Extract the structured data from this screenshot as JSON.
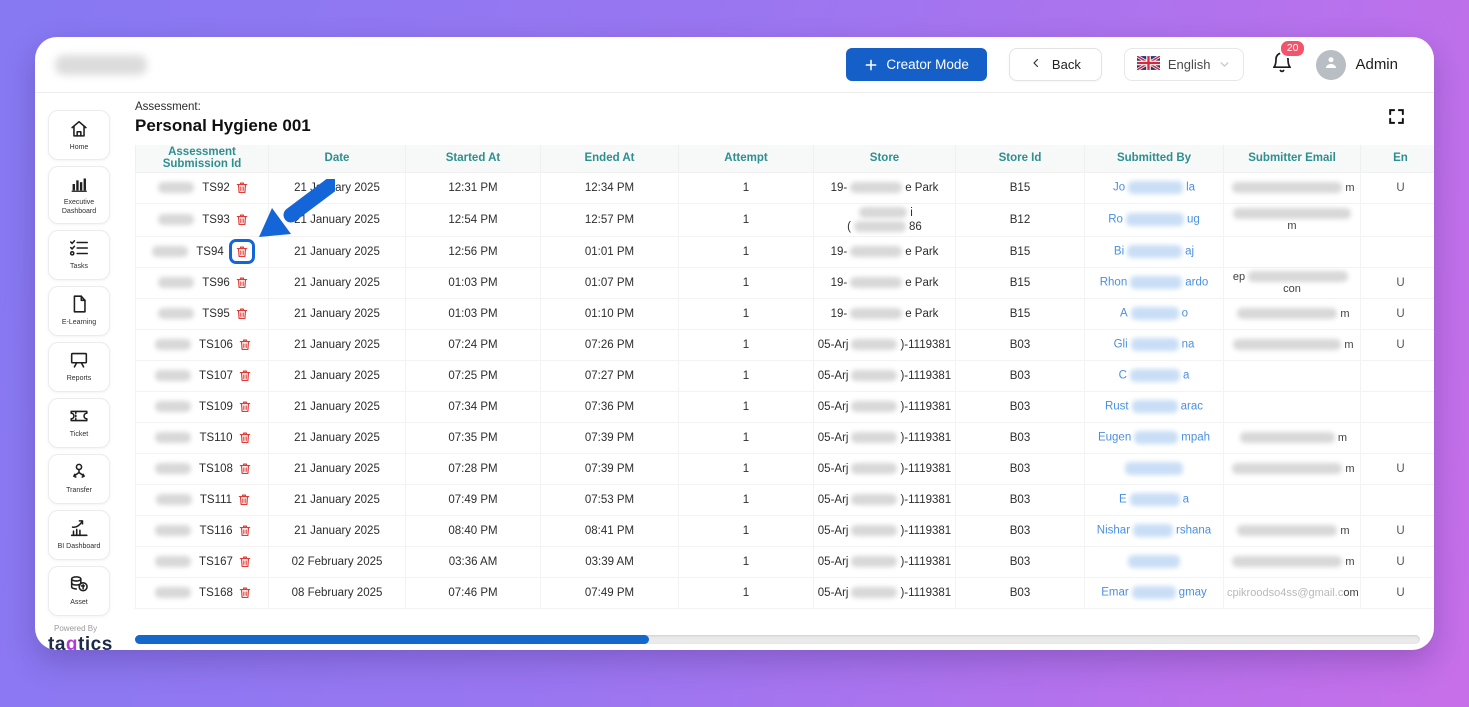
{
  "topbar": {
    "creator_mode_label": "Creator Mode",
    "back_label": "Back",
    "language_selected": "English",
    "notification_count": "20",
    "user_name": "Admin"
  },
  "sidebar": {
    "items": [
      {
        "label": "Home",
        "icon": "home-icon"
      },
      {
        "label": "Executive Dashboard",
        "icon": "executive-dashboard-icon"
      },
      {
        "label": "Tasks",
        "icon": "tasks-icon"
      },
      {
        "label": "E-Learning",
        "icon": "e-learning-icon"
      },
      {
        "label": "Reports",
        "icon": "reports-icon"
      },
      {
        "label": "Ticket",
        "icon": "ticket-icon"
      },
      {
        "label": "Transfer",
        "icon": "transfer-icon"
      },
      {
        "label": "BI Dashboard",
        "icon": "bi-dashboard-icon"
      },
      {
        "label": "Asset",
        "icon": "asset-icon"
      }
    ],
    "powered_by": "Powered By",
    "brand_prefix": "ta",
    "brand_q": "q",
    "brand_suffix": "tics"
  },
  "main": {
    "assessment_label": "Assessment:",
    "assessment_name": "Personal Hygiene 001"
  },
  "table": {
    "headers": [
      "Assessment Submission Id",
      "Date",
      "Started At",
      "Ended At",
      "Attempt",
      "Store",
      "Store Id",
      "Submitted By",
      "Submitter Email",
      "En"
    ],
    "rows": [
      {
        "id": "TS92",
        "date": "21 January 2025",
        "started": "12:31 PM",
        "ended": "12:34 PM",
        "attempt": "1",
        "store": [
          [
            {
              "t": "19-"
            },
            {
              "b": 52
            },
            {
              "t": "e Park"
            }
          ]
        ],
        "store_id": "B15",
        "submitted_by": [
          {
            "t": "Jo"
          },
          {
            "b": 55,
            "c": "blue"
          },
          {
            "t": "la"
          }
        ],
        "email": [
          {
            "b": 110
          },
          {
            "t": "m"
          }
        ],
        "emp": "U",
        "highlight": false
      },
      {
        "id": "TS93",
        "date": "21 January 2025",
        "started": "12:54 PM",
        "ended": "12:57 PM",
        "attempt": "1",
        "store": [
          [
            {
              "b": 48
            },
            {
              "t": "i"
            }
          ],
          [
            {
              "t": "("
            },
            {
              "b": 52
            },
            {
              "t": "86"
            }
          ]
        ],
        "store_id": "B12",
        "submitted_by": [
          {
            "t": "Ro"
          },
          {
            "b": 58,
            "c": "blue"
          },
          {
            "t": "ug"
          }
        ],
        "email": [
          {
            "b": 118
          },
          {
            "t": "m"
          }
        ],
        "emp": "",
        "highlight": false
      },
      {
        "id": "TS94",
        "date": "21 January 2025",
        "started": "12:56 PM",
        "ended": "01:01 PM",
        "attempt": "1",
        "store": [
          [
            {
              "t": "19-"
            },
            {
              "b": 52
            },
            {
              "t": "e Park"
            }
          ]
        ],
        "store_id": "B15",
        "submitted_by": [
          {
            "t": "Bi"
          },
          {
            "b": 55,
            "c": "blue"
          },
          {
            "t": "aj"
          }
        ],
        "email": [],
        "emp": "",
        "highlight": true
      },
      {
        "id": "TS96",
        "date": "21 January 2025",
        "started": "01:03 PM",
        "ended": "01:07 PM",
        "attempt": "1",
        "store": [
          [
            {
              "t": "19-"
            },
            {
              "b": 52
            },
            {
              "t": "e Park"
            }
          ]
        ],
        "store_id": "B15",
        "submitted_by": [
          {
            "t": "Rhon"
          },
          {
            "b": 52,
            "c": "blue"
          },
          {
            "t": "ardo"
          }
        ],
        "email": [
          {
            "t": "ep"
          },
          {
            "b": 100
          },
          {
            "t": "con"
          }
        ],
        "emp": "U",
        "highlight": false
      },
      {
        "id": "TS95",
        "date": "21 January 2025",
        "started": "01:03 PM",
        "ended": "01:10 PM",
        "attempt": "1",
        "store": [
          [
            {
              "t": "19-"
            },
            {
              "b": 52
            },
            {
              "t": "e Park"
            }
          ]
        ],
        "store_id": "B15",
        "submitted_by": [
          {
            "t": "A"
          },
          {
            "b": 48,
            "c": "blue"
          },
          {
            "t": "o"
          }
        ],
        "email": [
          {
            "b": 100
          },
          {
            "t": "m"
          }
        ],
        "emp": "U",
        "highlight": false
      },
      {
        "id": "TS106",
        "date": "21 January 2025",
        "started": "07:24 PM",
        "ended": "07:26 PM",
        "attempt": "1",
        "store": [
          [
            {
              "t": "05-Arj"
            },
            {
              "b": 46
            },
            {
              "t": ")-1119381"
            }
          ]
        ],
        "store_id": "B03",
        "submitted_by": [
          {
            "t": "Gli"
          },
          {
            "b": 48,
            "c": "blue"
          },
          {
            "t": "na"
          }
        ],
        "email": [
          {
            "b": 108
          },
          {
            "t": "m"
          }
        ],
        "emp": "U",
        "highlight": false
      },
      {
        "id": "TS107",
        "date": "21 January 2025",
        "started": "07:25 PM",
        "ended": "07:27 PM",
        "attempt": "1",
        "store": [
          [
            {
              "t": "05-Arj"
            },
            {
              "b": 46
            },
            {
              "t": ")-1119381"
            }
          ]
        ],
        "store_id": "B03",
        "submitted_by": [
          {
            "t": "C"
          },
          {
            "b": 50,
            "c": "blue"
          },
          {
            "t": "a"
          }
        ],
        "email": [],
        "emp": "",
        "highlight": false
      },
      {
        "id": "TS109",
        "date": "21 January 2025",
        "started": "07:34 PM",
        "ended": "07:36 PM",
        "attempt": "1",
        "store": [
          [
            {
              "t": "05-Arj"
            },
            {
              "b": 46
            },
            {
              "t": ")-1119381"
            }
          ]
        ],
        "store_id": "B03",
        "submitted_by": [
          {
            "t": "Rust"
          },
          {
            "b": 46,
            "c": "blue"
          },
          {
            "t": "arac"
          }
        ],
        "email": [],
        "emp": "",
        "highlight": false
      },
      {
        "id": "TS110",
        "date": "21 January 2025",
        "started": "07:35 PM",
        "ended": "07:39 PM",
        "attempt": "1",
        "store": [
          [
            {
              "t": "05-Arj"
            },
            {
              "b": 46
            },
            {
              "t": ")-1119381"
            }
          ]
        ],
        "store_id": "B03",
        "submitted_by": [
          {
            "t": "Eugen"
          },
          {
            "b": 44,
            "c": "blue"
          },
          {
            "t": "mpah"
          }
        ],
        "email": [
          {
            "b": 95
          },
          {
            "t": "m"
          }
        ],
        "emp": "",
        "highlight": false
      },
      {
        "id": "TS108",
        "date": "21 January 2025",
        "started": "07:28 PM",
        "ended": "07:39 PM",
        "attempt": "1",
        "store": [
          [
            {
              "t": "05-Arj"
            },
            {
              "b": 46
            },
            {
              "t": ")-1119381"
            }
          ]
        ],
        "store_id": "B03",
        "submitted_by": [
          {
            "b": 58,
            "c": "blue"
          }
        ],
        "email": [
          {
            "b": 110
          },
          {
            "t": "m"
          }
        ],
        "emp": "U",
        "highlight": false
      },
      {
        "id": "TS111",
        "date": "21 January 2025",
        "started": "07:49 PM",
        "ended": "07:53 PM",
        "attempt": "1",
        "store": [
          [
            {
              "t": "05-Arj"
            },
            {
              "b": 46
            },
            {
              "t": ")-1119381"
            }
          ]
        ],
        "store_id": "B03",
        "submitted_by": [
          {
            "t": "E"
          },
          {
            "b": 50,
            "c": "blue"
          },
          {
            "t": "a"
          }
        ],
        "email": [],
        "emp": "",
        "highlight": false
      },
      {
        "id": "TS116",
        "date": "21 January 2025",
        "started": "08:40 PM",
        "ended": "08:41 PM",
        "attempt": "1",
        "store": [
          [
            {
              "t": "05-Arj"
            },
            {
              "b": 46
            },
            {
              "t": ")-1119381"
            }
          ]
        ],
        "store_id": "B03",
        "submitted_by": [
          {
            "t": "Nishar"
          },
          {
            "b": 40,
            "c": "blue"
          },
          {
            "t": "rshana"
          }
        ],
        "email": [
          {
            "b": 100
          },
          {
            "t": "m"
          }
        ],
        "emp": "U",
        "highlight": false
      },
      {
        "id": "TS167",
        "date": "02 February 2025",
        "started": "03:36 AM",
        "ended": "03:39 AM",
        "attempt": "1",
        "store": [
          [
            {
              "t": "05-Arj"
            },
            {
              "b": 46
            },
            {
              "t": ")-1119381"
            }
          ]
        ],
        "store_id": "B03",
        "submitted_by": [
          {
            "b": 52,
            "c": "blue"
          }
        ],
        "email": [
          {
            "b": 110
          },
          {
            "t": "m"
          }
        ],
        "emp": "U",
        "highlight": false
      },
      {
        "id": "TS168",
        "date": "08 February 2025",
        "started": "07:46 PM",
        "ended": "07:49 PM",
        "attempt": "1",
        "store": [
          [
            {
              "t": "05-Arj"
            },
            {
              "b": 46
            },
            {
              "t": ")-1119381"
            }
          ]
        ],
        "store_id": "B03",
        "submitted_by": [
          {
            "t": "Emar"
          },
          {
            "b": 44,
            "c": "blue"
          },
          {
            "t": "gmay"
          }
        ],
        "email": [
          {
            "t": "cpikroodso4ss@gmail.c",
            "f": true
          },
          {
            "t": "om"
          }
        ],
        "emp": "U",
        "highlight": false
      }
    ]
  },
  "colors": {
    "primary_blue": "#1560c8",
    "header_teal": "#2f8f8f",
    "link_blue": "#4a90e2",
    "danger_red": "#e23b36",
    "badge_red": "#f2556b",
    "annotation_blue": "#1466d8",
    "brand_navy": "#1c2b4a",
    "brand_purple": "#b23bd6"
  }
}
